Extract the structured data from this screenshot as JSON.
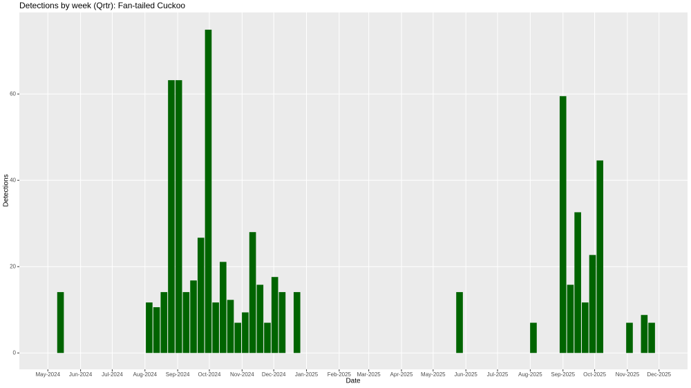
{
  "chart_data": {
    "type": "bar",
    "title": "Detections by week (Qrtr): Fan-tailed Cuckoo",
    "x_label": "Date",
    "y_label": "Detections",
    "x": [
      "2024-05-13",
      "2024-08-05",
      "2024-08-12",
      "2024-08-19",
      "2024-08-26",
      "2024-09-02",
      "2024-09-09",
      "2024-09-16",
      "2024-09-23",
      "2024-09-30",
      "2024-10-07",
      "2024-10-14",
      "2024-10-21",
      "2024-10-28",
      "2024-11-04",
      "2024-11-11",
      "2024-11-18",
      "2024-11-25",
      "2024-12-02",
      "2024-12-09",
      "2024-12-23",
      "2025-05-26",
      "2025-08-04",
      "2025-09-01",
      "2025-09-08",
      "2025-09-15",
      "2025-09-22",
      "2025-09-29",
      "2025-10-06",
      "2025-11-03",
      "2025-11-17",
      "2025-11-24"
    ],
    "values": [
      14.1,
      11.7,
      10.6,
      14.1,
      63.2,
      63.2,
      14.1,
      16.8,
      26.7,
      74.9,
      11.7,
      21.1,
      12.3,
      7.0,
      9.4,
      28.0,
      15.8,
      7.0,
      17.6,
      14.1,
      14.1,
      14.1,
      7.0,
      59.5,
      15.8,
      32.6,
      11.7,
      22.7,
      44.6,
      7.0,
      8.8,
      7.0
    ],
    "color": "#006400",
    "xlim": [
      "2024-04-04",
      "2025-12-28"
    ],
    "xticks": [
      {
        "value": "2024-05-01",
        "label": "May-2024"
      },
      {
        "value": "2024-06-01",
        "label": "Jun-2024"
      },
      {
        "value": "2024-07-01",
        "label": "Jul-2024"
      },
      {
        "value": "2024-08-01",
        "label": "Aug-2024"
      },
      {
        "value": "2024-09-01",
        "label": "Sep-2024"
      },
      {
        "value": "2024-10-01",
        "label": "Oct-2024"
      },
      {
        "value": "2024-11-01",
        "label": "Nov-2024"
      },
      {
        "value": "2024-12-01",
        "label": "Dec-2024"
      },
      {
        "value": "2025-01-01",
        "label": "Jan-2025"
      },
      {
        "value": "2025-02-01",
        "label": "Feb-2025"
      },
      {
        "value": "2025-03-01",
        "label": "Mar-2025"
      },
      {
        "value": "2025-04-01",
        "label": "Apr-2025"
      },
      {
        "value": "2025-05-01",
        "label": "May-2025"
      },
      {
        "value": "2025-06-01",
        "label": "Jun-2025"
      },
      {
        "value": "2025-07-01",
        "label": "Jul-2025"
      },
      {
        "value": "2025-08-01",
        "label": "Aug-2025"
      },
      {
        "value": "2025-09-01",
        "label": "Sep-2025"
      },
      {
        "value": "2025-10-01",
        "label": "Oct-2025"
      },
      {
        "value": "2025-11-01",
        "label": "Nov-2025"
      },
      {
        "value": "2025-12-01",
        "label": "Dec-2025"
      }
    ],
    "ylim": [
      -3.8,
      78.9
    ],
    "yticks": [
      0,
      20,
      40,
      60
    ],
    "grid": true
  }
}
